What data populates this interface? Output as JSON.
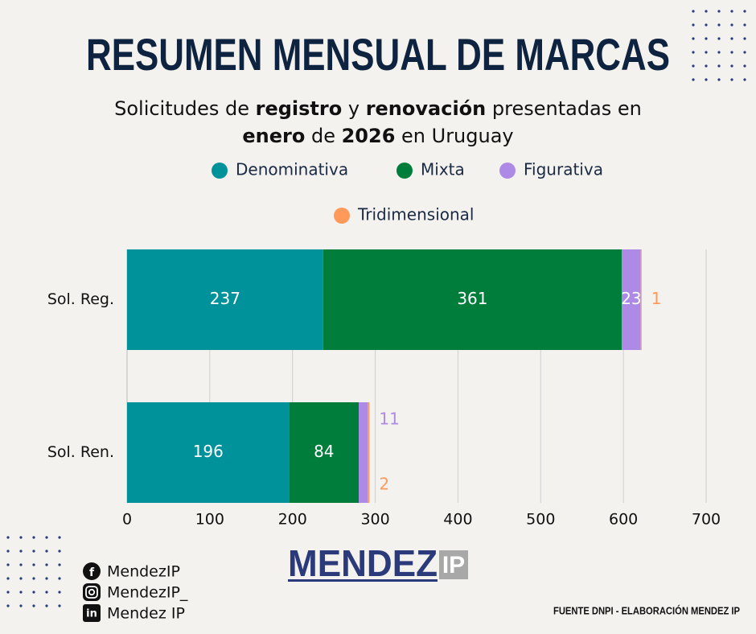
{
  "header": {
    "title": "RESUMEN MENSUAL DE MARCAS",
    "subtitle_lines": [
      [
        {
          "text": "Solicitudes de ",
          "bold": false
        },
        {
          "text": "registro",
          "bold": true
        },
        {
          "text": " y ",
          "bold": false
        },
        {
          "text": "renovación",
          "bold": true
        },
        {
          "text": " presentadas en",
          "bold": false
        }
      ],
      [
        {
          "text": "enero",
          "bold": true
        },
        {
          "text": " de ",
          "bold": false
        },
        {
          "text": "2026",
          "bold": true
        },
        {
          "text": " en Uruguay",
          "bold": false
        }
      ]
    ]
  },
  "chart_data": {
    "type": "stacked-bar-horizontal",
    "categories": [
      "Sol. Reg.",
      "Sol. Ren."
    ],
    "series": [
      {
        "name": "Denominativa",
        "color": "#00929a",
        "values": [
          237,
          196
        ]
      },
      {
        "name": "Mixta",
        "color": "#007d3a",
        "values": [
          361,
          84
        ]
      },
      {
        "name": "Figurativa",
        "color": "#ad8ae6",
        "values": [
          23,
          11
        ]
      },
      {
        "name": "Tridimensional",
        "color": "#ff9a5a",
        "values": [
          1,
          2
        ]
      }
    ],
    "xlim": [
      0,
      700
    ],
    "xticks": [
      0,
      100,
      200,
      300,
      400,
      500,
      600,
      700
    ],
    "grid": true
  },
  "footer": {
    "social": [
      "MendezIP",
      "MendezIP_",
      "Mendez IP"
    ],
    "logo": {
      "main": "MENDEZ",
      "box": "IP"
    },
    "source": "FUENTE DNPI - ELABORACIÓN MENDEZ IP"
  }
}
